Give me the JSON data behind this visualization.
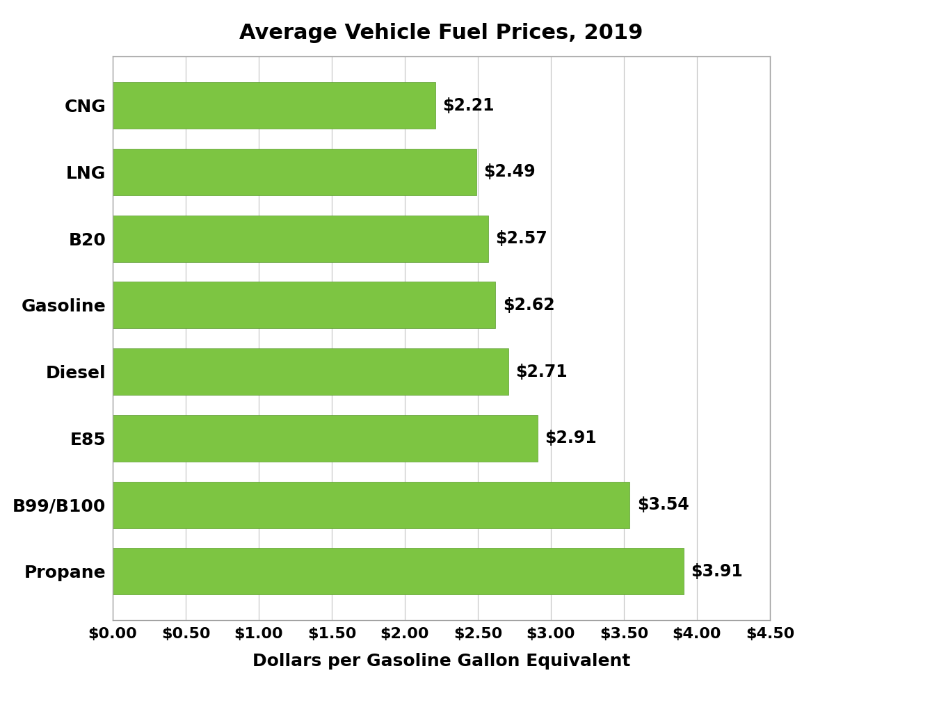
{
  "title": "Average Vehicle Fuel Prices, 2019",
  "xlabel": "Dollars per Gasoline Gallon Equivalent",
  "categories": [
    "Propane",
    "B99/B100",
    "E85",
    "Diesel",
    "Gasoline",
    "B20",
    "LNG",
    "CNG"
  ],
  "values": [
    3.91,
    3.54,
    2.91,
    2.71,
    2.62,
    2.57,
    2.49,
    2.21
  ],
  "labels": [
    "$3.91",
    "$3.54",
    "$2.91",
    "$2.71",
    "$2.62",
    "$2.57",
    "$2.49",
    "$2.21"
  ],
  "bar_color": "#7DC542",
  "xlim": [
    0,
    4.5
  ],
  "xticks": [
    0.0,
    0.5,
    1.0,
    1.5,
    2.0,
    2.5,
    3.0,
    3.5,
    4.0,
    4.5
  ],
  "xtick_labels": [
    "$0.00",
    "$0.50",
    "$1.00",
    "$1.50",
    "$2.00",
    "$2.50",
    "$3.00",
    "$3.50",
    "$4.00",
    "$4.50"
  ],
  "title_fontsize": 22,
  "label_fontsize": 18,
  "tick_fontsize": 16,
  "bar_label_fontsize": 17,
  "ytick_fontsize": 18,
  "background_color": "#ffffff",
  "grid_color": "#c8c8c8",
  "bar_edge_color": "#5a9a30",
  "spine_color": "#a0a0a0"
}
